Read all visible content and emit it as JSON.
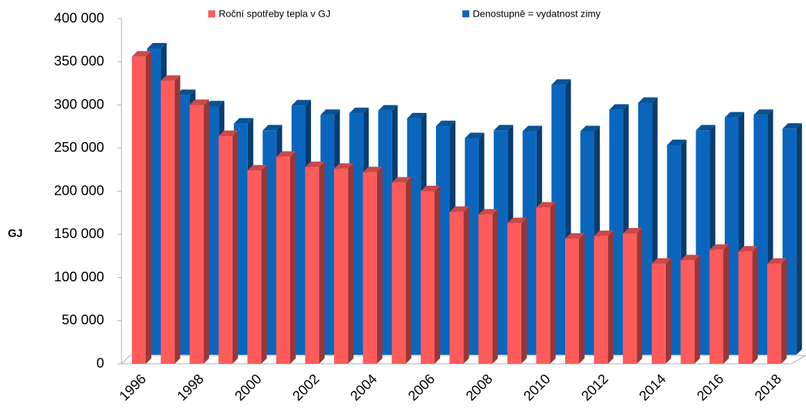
{
  "chart_data": {
    "type": "bar3d",
    "ylabel": "GJ",
    "categories": [
      "1996",
      null,
      "1998",
      null,
      "2000",
      null,
      "2002",
      null,
      "2004",
      null,
      "2006",
      null,
      "2008",
      null,
      "2010",
      null,
      "2012",
      null,
      "2014",
      null,
      "2016",
      null,
      "2018"
    ],
    "series": [
      {
        "name": "Roční spotřeby tepla v GJ",
        "color": "#ff5b5b",
        "values": [
          356000,
          328000,
          300000,
          264000,
          224000,
          240000,
          228000,
          226000,
          222000,
          210000,
          200000,
          176000,
          173000,
          163000,
          181000,
          145000,
          148000,
          151000,
          116000,
          120000,
          132000,
          130000,
          116000
        ]
      },
      {
        "name": "Denostupně = vydatnost zimy",
        "color": "#0a66bd",
        "values": [
          355000,
          301000,
          288000,
          268000,
          260000,
          289000,
          278000,
          280000,
          283000,
          274000,
          265000,
          251000,
          260000,
          259000,
          313000,
          259000,
          284000,
          292000,
          243000,
          260000,
          275000,
          278000,
          262000
        ]
      }
    ],
    "ylim": [
      0,
      400000
    ],
    "yticks": [
      0,
      {
        "value": 50000,
        "label": "50 000"
      },
      {
        "value": 100000,
        "label": "100 000"
      },
      {
        "value": 150000,
        "label": "150 000"
      },
      {
        "value": 200000,
        "label": "200 000"
      },
      {
        "value": 250000,
        "label": "250 000"
      },
      {
        "value": 300000,
        "label": "300 000"
      },
      {
        "value": 350000,
        "label": "350 000"
      },
      {
        "value": 400000,
        "label": "400 000"
      }
    ]
  }
}
